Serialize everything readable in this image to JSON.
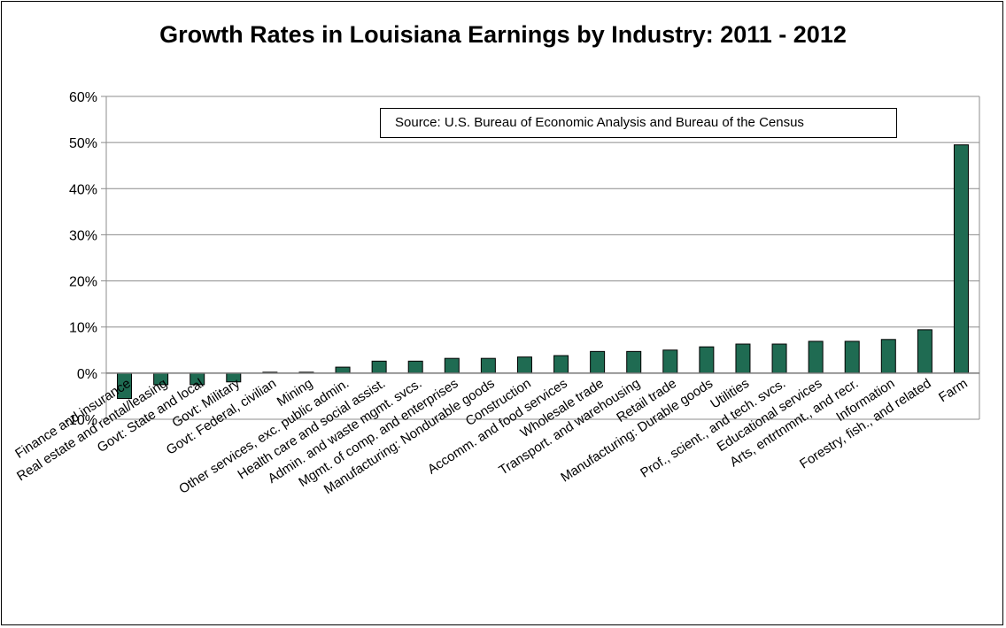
{
  "chart_data": {
    "type": "bar",
    "title": "Growth Rates in Louisiana Earnings by Industry: 2011 - 2012",
    "annotation": "Source: U.S. Bureau of Economic Analysis and Bureau of the Census",
    "ylabel": "",
    "xlabel": "",
    "ylim": [
      -10,
      60
    ],
    "yticks": [
      "-10%",
      "0%",
      "10%",
      "20%",
      "30%",
      "40%",
      "50%",
      "60%"
    ],
    "grid": true,
    "bar_color": "#1f6b52",
    "categories": [
      "Finance and insurance",
      "Real estate and rental/leasing",
      "Govt: State and local",
      "Govt: Military",
      "Govt: Federal, civilian",
      "Mining",
      "Other services, exc. public admin.",
      "Health care and social assist.",
      "Admin. and waste mgmt. svcs.",
      "Mgmt. of comp. and enterprises",
      "Manufacturing: Nondurable goods",
      "Construction",
      "Accomm. and food services",
      "Wholesale trade",
      "Transport. and warehousing",
      "Retail trade",
      "Manufacturing: Durable goods",
      "Utilities",
      "Prof., scient., and tech. svcs.",
      "Educational services",
      "Arts, entrtnmnt., and recr.",
      "Information",
      "Forestry, fish., and related",
      "Farm"
    ],
    "values": [
      -5.5,
      -2.5,
      -2.5,
      -1.9,
      0.2,
      0.2,
      1.3,
      2.6,
      2.6,
      3.2,
      3.2,
      3.5,
      3.8,
      4.7,
      4.7,
      5.0,
      5.7,
      6.3,
      6.3,
      6.9,
      6.9,
      7.3,
      9.4,
      49.5
    ]
  }
}
